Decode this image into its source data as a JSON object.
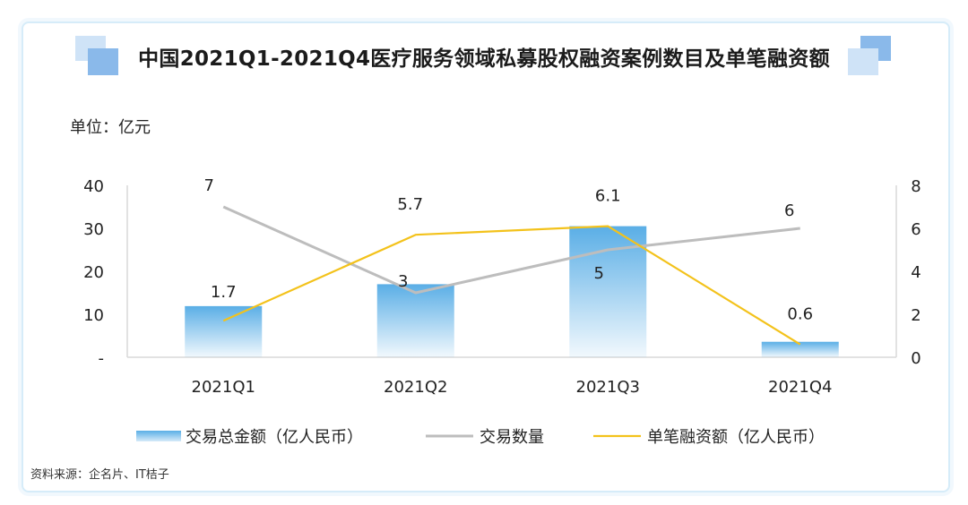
{
  "title": "中国2021Q1-2021Q4医疗服务领域私募股权融资案例数目及单笔融资额",
  "unit_label": "单位：亿元",
  "source": "资料来源：企名片、IT桔子",
  "colors": {
    "bar": "#5aaee6",
    "count_line": "#bdbdbd",
    "avg_line": "#f3c21b",
    "title_deco": "#7fb3e6"
  },
  "chart_data": {
    "type": "bar",
    "categories": [
      "2021Q1",
      "2021Q2",
      "2021Q3",
      "2021Q4"
    ],
    "series": [
      {
        "name": "交易总金额（亿人民币）",
        "type": "bar",
        "axis": "left",
        "values": [
          11.9,
          17,
          30.5,
          3.6
        ]
      },
      {
        "name": "交易数量",
        "type": "line",
        "axis": "right",
        "values": [
          7,
          3,
          5,
          6
        ]
      },
      {
        "name": "单笔融资额（亿人民币）",
        "type": "line",
        "axis": "right",
        "values": [
          1.7,
          5.7,
          6.1,
          0.6
        ]
      }
    ],
    "data_labels": {
      "交易数量": [
        "7",
        "3",
        "5",
        "6"
      ],
      "单笔融资额（亿人民币）": [
        "1.7",
        "5.7",
        "6.1",
        "0.6"
      ]
    },
    "left_axis": {
      "ylim": [
        0,
        40
      ],
      "ticks": [
        "-",
        "10",
        "20",
        "30",
        "40"
      ]
    },
    "right_axis": {
      "ylim": [
        0,
        8
      ],
      "ticks": [
        "0",
        "2",
        "4",
        "6",
        "8"
      ]
    },
    "legend_position": "bottom",
    "grid": false
  }
}
